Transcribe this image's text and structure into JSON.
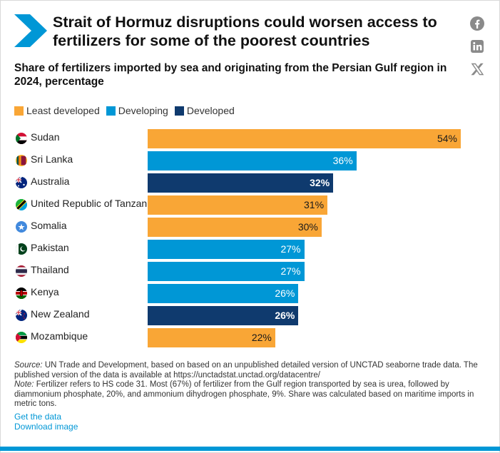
{
  "header": {
    "title": "Strait of Hormuz disruptions could worsen access to fertilizers for some of the poorest countries",
    "subtitle": "Share of fertilizers imported by sea and originating from the Persian Gulf region in 2024, percentage"
  },
  "social": {
    "icons": [
      "facebook-icon",
      "linkedin-icon",
      "x-icon"
    ]
  },
  "colors": {
    "least_developed": "#f9a636",
    "developing": "#0097d6",
    "developed": "#0f3a6e",
    "accent": "#0097d6"
  },
  "chart_data": {
    "type": "bar",
    "orientation": "horizontal",
    "legend": [
      "Least developed",
      "Developing",
      "Developed"
    ],
    "categories": [
      "Sudan",
      "Sri Lanka",
      "Australia",
      "United Republic of Tanzania",
      "Somalia",
      "Pakistan",
      "Thailand",
      "Kenya",
      "New Zealand",
      "Mozambique"
    ],
    "values": [
      54,
      36,
      32,
      31,
      30,
      27,
      27,
      26,
      26,
      22
    ],
    "groups": [
      "Least developed",
      "Developing",
      "Developed",
      "Least developed",
      "Least developed",
      "Developing",
      "Developing",
      "Developing",
      "Developed",
      "Least developed"
    ],
    "labels": [
      "54%",
      "36%",
      "32%",
      "31%",
      "30%",
      "27%",
      "27%",
      "26%",
      "26%",
      "22%"
    ],
    "xlim": [
      0,
      54
    ],
    "grid": false
  },
  "footer": {
    "source_label": "Source:",
    "source_text": " UN Trade and Development, based on based on an unpublished detailed version of UNCTAD seaborne trade data. The published version of the data is available at https://unctadstat.unctad.org/datacentre/",
    "note_label": "Note:",
    "note_text": " Fertilizer refers to HS code 31. Most (67%) of fertilizer from the Gulf region transported by sea is urea, followed by diammonium phosphate, 20%, and ammonium dihydrogen phosphate, 9%. Share was calculated based on maritime imports in metric tons.",
    "get_data": "Get the data",
    "download_image": "Download image"
  }
}
